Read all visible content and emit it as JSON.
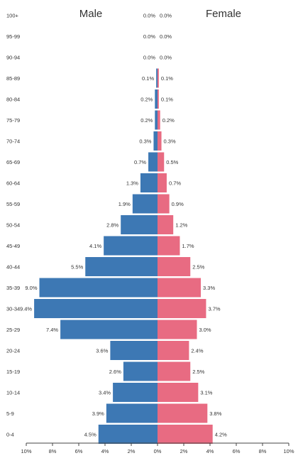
{
  "chart_data": {
    "type": "bar",
    "orientation": "horizontal-population-pyramid",
    "title": "",
    "xlabel": "",
    "ylabel": "",
    "headers": {
      "male": "Male",
      "female": "Female"
    },
    "categories": [
      "0-4",
      "5-9",
      "10-14",
      "15-19",
      "20-24",
      "25-29",
      "30-34",
      "35-39",
      "40-44",
      "45-49",
      "50-54",
      "55-59",
      "60-64",
      "65-69",
      "70-74",
      "75-79",
      "80-84",
      "85-89",
      "90-94",
      "95-99",
      "100+"
    ],
    "series": [
      {
        "name": "Male",
        "color": "#3d78b4",
        "values": [
          4.5,
          3.9,
          3.4,
          2.6,
          3.6,
          7.4,
          9.4,
          9.0,
          5.5,
          4.1,
          2.8,
          1.9,
          1.3,
          0.7,
          0.3,
          0.2,
          0.2,
          0.1,
          0.0,
          0.0,
          0.0
        ],
        "labels": [
          "4.5%",
          "3.9%",
          "3.4%",
          "2.6%",
          "3.6%",
          "7.4%",
          "9.4%",
          "9.0%",
          "5.5%",
          "4.1%",
          "2.8%",
          "1.9%",
          "1.3%",
          "0.7%",
          "0.3%",
          "0.2%",
          "0.2%",
          "0.1%",
          "0.0%",
          "0.0%",
          "0.0%"
        ]
      },
      {
        "name": "Female",
        "color": "#e86b82",
        "values": [
          4.2,
          3.8,
          3.1,
          2.5,
          2.4,
          3.0,
          3.7,
          3.3,
          2.5,
          1.7,
          1.2,
          0.9,
          0.7,
          0.5,
          0.3,
          0.2,
          0.1,
          0.1,
          0.0,
          0.0,
          0.0
        ],
        "labels": [
          "4.2%",
          "3.8%",
          "3.1%",
          "2.5%",
          "2.4%",
          "3.0%",
          "3.7%",
          "3.3%",
          "2.5%",
          "1.7%",
          "1.2%",
          "0.9%",
          "0.7%",
          "0.5%",
          "0.3%",
          "0.2%",
          "0.1%",
          "0.1%",
          "0.0%",
          "0.0%",
          "0.0%"
        ]
      }
    ],
    "xlim": [
      -10,
      10
    ],
    "xticks": [
      -10,
      -8,
      -6,
      -4,
      -2,
      0,
      2,
      4,
      6,
      8,
      10
    ],
    "xtick_labels": [
      "10%",
      "8%",
      "6%",
      "4%",
      "2%",
      "0%",
      "2%",
      "4%",
      "6%",
      "8%",
      "10%"
    ],
    "grid": false,
    "legend": "none"
  }
}
